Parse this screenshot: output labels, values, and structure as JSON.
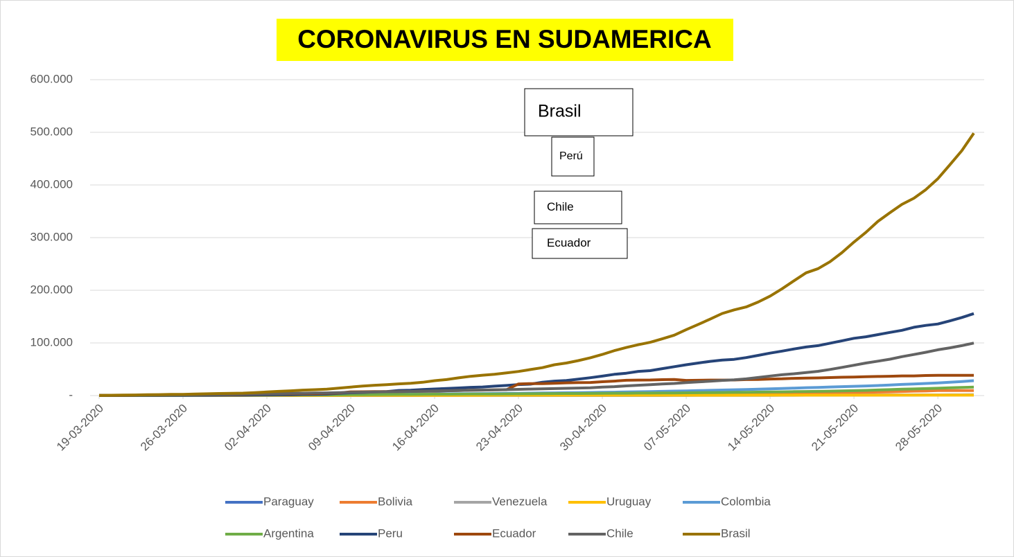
{
  "chart_data": {
    "type": "line",
    "title": "CORONAVIRUS EN SUDAMERICA",
    "annotations": [
      "Brasil",
      "Perú",
      "Chile",
      "Ecuador"
    ],
    "categories": [
      "19-03-2020",
      null,
      null,
      null,
      null,
      null,
      null,
      "26-03-2020",
      null,
      null,
      null,
      null,
      null,
      null,
      "02-04-2020",
      null,
      null,
      null,
      null,
      null,
      null,
      "09-04-2020",
      null,
      null,
      null,
      null,
      null,
      null,
      "16-04-2020",
      null,
      null,
      null,
      null,
      null,
      null,
      "23-04-2020",
      null,
      null,
      null,
      null,
      null,
      null,
      "30-04-2020",
      null,
      null,
      null,
      null,
      null,
      null,
      "07-05-2020",
      null,
      null,
      null,
      null,
      null,
      null,
      "14-05-2020",
      null,
      null,
      null,
      null,
      null,
      null,
      "21-05-2020",
      null,
      null,
      null,
      null,
      null,
      null,
      "28-05-2020",
      null,
      null,
      null
    ],
    "ylim": [
      0,
      600000
    ],
    "yticks": [
      {
        "value": 0,
        "label": "-"
      },
      {
        "value": 100000,
        "label": "100.000"
      },
      {
        "value": 200000,
        "label": "200.000"
      },
      {
        "value": 300000,
        "label": "300.000"
      },
      {
        "value": 400000,
        "label": "400.000"
      },
      {
        "value": 500000,
        "label": "500.000"
      },
      {
        "value": 600000,
        "label": "600.000"
      }
    ],
    "grid": true,
    "legend": "bottom",
    "series": [
      {
        "name": "Paraguay",
        "color": "#4472c4",
        "values": [
          13,
          18,
          18,
          22,
          27,
          37,
          41,
          52,
          56,
          59,
          64,
          65,
          69,
          77,
          92,
          96,
          104,
          113,
          115,
          119,
          129,
          133,
          134,
          147,
          159,
          161,
          174,
          199,
          202,
          206,
          208,
          208,
          213,
          213,
          220,
          223,
          228,
          230,
          239,
          249,
          263,
          266,
          333,
          370,
          396,
          415,
          431,
          440,
          462,
          563,
          689,
          713,
          724,
          737,
          740,
          754,
          759,
          778,
          786,
          800,
          833,
          836,
          865,
          884,
          917,
          964,
          1070,
          1086,
          1087,
          1135,
          1135,
          1145,
          1187,
          1202
        ]
      },
      {
        "name": "Bolivia",
        "color": "#ed7d31",
        "values": [
          12,
          15,
          19,
          24,
          27,
          29,
          32,
          39,
          61,
          74,
          81,
          97,
          107,
          115,
          123,
          132,
          157,
          183,
          194,
          210,
          264,
          268,
          275,
          300,
          330,
          354,
          397,
          441,
          465,
          520,
          564,
          598,
          609,
          672,
          703,
          807,
          866,
          950,
          1014,
          1053,
          1110,
          1167,
          1229,
          1470,
          1594,
          1681,
          1802,
          1886,
          2081,
          2266,
          2437,
          2556,
          2831,
          2964,
          3148,
          3372,
          3577,
          3826,
          4088,
          4263,
          4481,
          4919,
          5187,
          5579,
          6263,
          6660,
          7136,
          7768,
          8387,
          8731,
          9592,
          9592,
          9592,
          9592
        ]
      },
      {
        "name": "Venezuela",
        "color": "#a5a5a5",
        "values": [
          42,
          42,
          70,
          77,
          77,
          84,
          91,
          106,
          107,
          119,
          129,
          135,
          143,
          143,
          146,
          153,
          155,
          159,
          165,
          165,
          166,
          167,
          171,
          175,
          181,
          189,
          193,
          197,
          204,
          227,
          256,
          285,
          288,
          298,
          311,
          318,
          323,
          325,
          329,
          329,
          331,
          333,
          335,
          345,
          357,
          361,
          367,
          379,
          381,
          388,
          402,
          414,
          422,
          423,
          440,
          455,
          459,
          504,
          541,
          618,
          749,
          824,
          882,
          944,
          1010,
          1121,
          1177,
          1211,
          1245,
          1325,
          1370,
          1459,
          1510,
          1662
        ]
      },
      {
        "name": "Uruguay",
        "color": "#ffc000",
        "values": [
          79,
          94,
          110,
          135,
          162,
          189,
          217,
          238,
          274,
          304,
          310,
          320,
          338,
          350,
          369,
          386,
          400,
          406,
          415,
          424,
          456,
          473,
          480,
          494,
          501,
          502,
          512,
          517,
          517,
          528,
          535,
          557,
          571,
          596,
          606,
          620,
          625,
          630,
          652,
          654,
          625,
          630,
          648,
          655,
          670,
          673,
          679,
          687,
          694,
          702,
          709,
          711,
          712,
          719,
          724,
          733,
          734,
          737,
          738,
          746,
          749,
          753,
          763,
          764,
          765,
          769,
          770,
          787,
          789,
          803,
          811,
          816,
          821,
          824
        ]
      },
      {
        "name": "Colombia",
        "color": "#5b9bd5",
        "values": [
          102,
          128,
          158,
          196,
          231,
          306,
          378,
          470,
          491,
          539,
          608,
          702,
          798,
          906,
          1065,
          1161,
          1267,
          1406,
          1485,
          1579,
          1780,
          2054,
          2223,
          2473,
          2709,
          2776,
          2852,
          2979,
          3105,
          3233,
          3439,
          3621,
          3792,
          3977,
          4149,
          4356,
          4561,
          4881,
          5142,
          5379,
          5597,
          5949,
          6207,
          6507,
          7006,
          7285,
          7668,
          7973,
          8613,
          8959,
          9456,
          10051,
          10495,
          11063,
          11613,
          12272,
          12930,
          13610,
          14216,
          14939,
          15574,
          16295,
          16935,
          17687,
          18330,
          19131,
          20177,
          21175,
          21981,
          23003,
          24104,
          25366,
          26688,
          28236
        ]
      },
      {
        "name": "Argentina",
        "color": "#70ad47",
        "values": [
          97,
          128,
          158,
          225,
          266,
          301,
          387,
          502,
          589,
          690,
          745,
          820,
          966,
          1054,
          1133,
          1265,
          1353,
          1451,
          1554,
          1628,
          1715,
          1795,
          1894,
          1975,
          2142,
          2208,
          2277,
          2443,
          2571,
          2669,
          2758,
          2839,
          2941,
          3031,
          3144,
          3288,
          3435,
          3607,
          3780,
          3892,
          4003,
          4127,
          4285,
          4428,
          4532,
          4681,
          4783,
          4887,
          5020,
          5208,
          5371,
          5611,
          5776,
          6034,
          6278,
          6563,
          6879,
          7134,
          7479,
          7805,
          8068,
          8371,
          8809,
          9283,
          9931,
          10649,
          11353,
          12076,
          12628,
          13228,
          13933,
          14702,
          15419,
          16214
        ]
      },
      {
        "name": "Peru",
        "color": "#264478",
        "values": [
          234,
          263,
          318,
          363,
          395,
          416,
          480,
          580,
          635,
          671,
          852,
          950,
          1065,
          1323,
          1414,
          1595,
          1746,
          2281,
          2561,
          2954,
          4342,
          5256,
          5897,
          6848,
          7519,
          9784,
          10303,
          11475,
          12491,
          13489,
          14420,
          15628,
          16325,
          17837,
          19250,
          20914,
          21648,
          25331,
          27517,
          28699,
          31190,
          33931,
          36976,
          40459,
          42534,
          45928,
          47372,
          51189,
          54817,
          58526,
          61847,
          65015,
          67307,
          68822,
          72059,
          76306,
          80604,
          84495,
          88541,
          92273,
          94933,
          99483,
          104020,
          108769,
          111698,
          115754,
          119959,
          123979,
          129751,
          133326,
          135905,
          141779,
          148285,
          155671
        ]
      },
      {
        "name": "Ecuador",
        "color": "#9e480e",
        "values": [
          199,
          367,
          426,
          532,
          981,
          1082,
          1211,
          1403,
          1595,
          1823,
          1924,
          1962,
          2240,
          2748,
          3163,
          3368,
          3465,
          3646,
          3747,
          4450,
          4965,
          7161,
          7257,
          7466,
          7529,
          7603,
          7858,
          8225,
          8450,
          9022,
          9468,
          10128,
          10398,
          10850,
          11183,
          22160,
          22719,
          22719,
          23240,
          24258,
          24675,
          24934,
          26336,
          27464,
          29071,
          29538,
          29559,
          30298,
          30502,
          28818,
          29071,
          29509,
          29420,
          29559,
          30419,
          30502,
          31467,
          31881,
          32763,
          33182,
          33582,
          34151,
          34854,
          35306,
          35828,
          36258,
          36756,
          37355,
          37355,
          38103,
          38471,
          38571,
          38571,
          38571
        ]
      },
      {
        "name": "Chile",
        "color": "#636363",
        "values": [
          342,
          434,
          537,
          632,
          746,
          922,
          1142,
          1306,
          1610,
          1909,
          2139,
          2449,
          2738,
          3031,
          3404,
          3737,
          4161,
          4471,
          4815,
          5116,
          5546,
          5972,
          6501,
          6927,
          7213,
          7525,
          7917,
          8273,
          8807,
          9252,
          9730,
          10088,
          10507,
          10832,
          11296,
          11812,
          12306,
          12858,
          13331,
          13813,
          14365,
          14885,
          16023,
          17008,
          18435,
          19663,
          20643,
          22016,
          23048,
          24581,
          25972,
          27219,
          28866,
          30063,
          31721,
          34381,
          37040,
          39542,
          41428,
          43781,
          46059,
          49579,
          53617,
          57581,
          61857,
          65393,
          69102,
          73997,
          77961,
          82289,
          86943,
          90638,
          94858,
          99688
        ]
      },
      {
        "name": "Brasil",
        "color": "#997300",
        "values": [
          428,
          621,
          904,
          1128,
          1546,
          1891,
          2201,
          2433,
          2915,
          3417,
          3904,
          4256,
          4579,
          5717,
          6836,
          8044,
          9056,
          10360,
          11130,
          12161,
          14034,
          16170,
          18092,
          19638,
          20727,
          22192,
          23430,
          25262,
          28320,
          30425,
          33682,
          36599,
          38654,
          40581,
          43079,
          45757,
          49492,
          52995,
          58509,
          61888,
          66501,
          71886,
          78162,
          85380,
          91299,
          96559,
          101147,
          107780,
          114715,
          125218,
          135106,
          145328,
          155939,
          162699,
          168331,
          177589,
          188974,
          202918,
          218223,
          233142,
          241080,
          254220,
          271628,
          291579,
          310087,
          330890,
          347398,
          363211,
          374898,
          391222,
          411821,
          438238,
          465166,
          498440
        ]
      }
    ]
  }
}
